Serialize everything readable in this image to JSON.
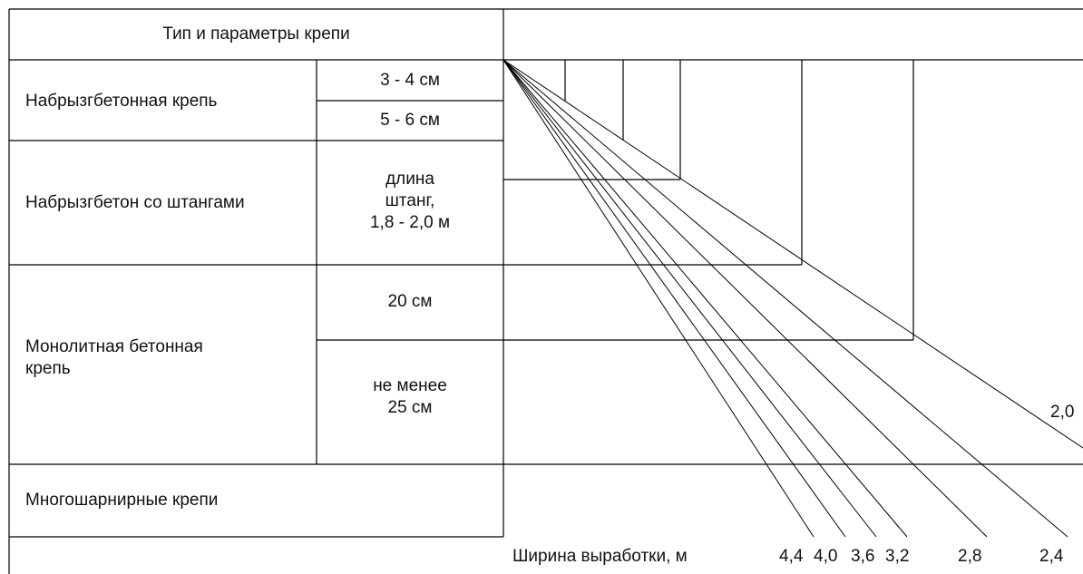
{
  "table": {
    "header": "Тип и параметры крепи",
    "rows": [
      {
        "type": "Набрызгбетонная крепь",
        "params": [
          "3 - 4 см",
          "5 - 6 см"
        ]
      },
      {
        "type": "Набрызгбетон со штангами",
        "params": [
          "длина\nштанг,\n1,8 - 2,0 м"
        ]
      },
      {
        "type": "Монолитная бетонная\nкрепь",
        "params": [
          "20 см",
          "не менее\n25 см"
        ]
      },
      {
        "type": "Многошарнирные крепи",
        "params": []
      }
    ]
  },
  "nomogram": {
    "axis_label": "Ширина выработки, м",
    "width_labels": [
      "4,4",
      "4,0",
      "3,6",
      "3,2",
      "2,8",
      "2,4",
      "2,0"
    ]
  }
}
